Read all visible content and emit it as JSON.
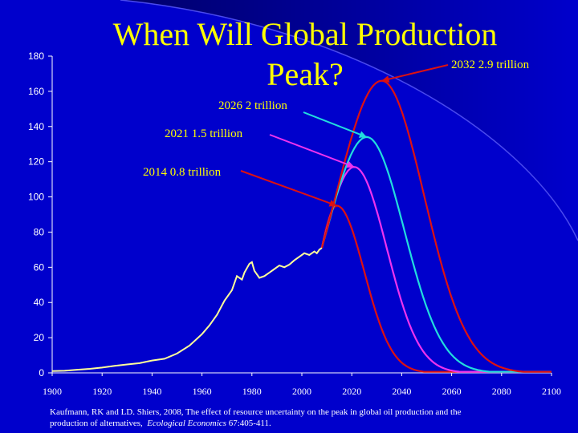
{
  "title_line1": "When Will Global Production",
  "title_line2": "Peak?",
  "citation_line1": "Kaufmann, RK  and  LD. Shiers, 2008, The effect of resource uncertainty on the peak in global oil production and the",
  "citation_line2_prefix": "production of alternatives,",
  "citation_journal": "Ecological Economics",
  "citation_pages": " 67:405-411.",
  "colors": {
    "background_dark": "#00006a",
    "background_light": "#0000cc",
    "title": "#ffff00",
    "text": "#ffffff",
    "historical": "#ffff99",
    "scenario_red": "#dd1111",
    "scenario_magenta": "#ee33ee",
    "scenario_cyan": "#22dddd"
  },
  "chart_data": {
    "type": "line",
    "title": "When Will Global Production Peak?",
    "xlabel": "",
    "ylabel": "",
    "xlim": [
      1900,
      2100
    ],
    "ylim": [
      0,
      180
    ],
    "x_ticks": [
      1900,
      1920,
      1940,
      1960,
      1980,
      2000,
      2020,
      2040,
      2060,
      2080,
      2100
    ],
    "y_ticks": [
      0,
      20,
      40,
      60,
      80,
      100,
      120,
      140,
      160,
      180
    ],
    "series": [
      {
        "name": "historical",
        "color": "#ffff99",
        "x": [
          1900,
          1905,
          1910,
          1915,
          1920,
          1925,
          1930,
          1935,
          1940,
          1945,
          1950,
          1955,
          1960,
          1963,
          1966,
          1969,
          1972,
          1974,
          1976,
          1977,
          1979,
          1980,
          1981,
          1983,
          1985,
          1987,
          1989,
          1991,
          1993,
          1995,
          1997,
          1999,
          2001,
          2003,
          2005,
          2006,
          2007,
          2008
        ],
        "values": [
          1,
          1.2,
          1.8,
          2.3,
          3,
          4,
          4.8,
          5.5,
          7,
          8,
          11,
          15.5,
          22,
          27,
          33,
          41,
          47,
          55,
          53,
          57,
          62,
          63,
          58,
          54,
          55,
          57,
          59,
          61,
          60,
          61.5,
          64,
          66,
          68,
          67,
          69,
          68,
          70,
          71
        ]
      },
      {
        "name": "2014 0.8 trillion",
        "color": "#dd1111",
        "peak_year": 2014,
        "peak_value": 95
      },
      {
        "name": "2021 1.5 trillion",
        "color": "#ee33ee",
        "peak_year": 2021,
        "peak_value": 117
      },
      {
        "name": "2026 2 trillion",
        "color": "#22dddd",
        "peak_year": 2026,
        "peak_value": 134
      },
      {
        "name": "2032 2.9 trillion",
        "color": "#dd1111",
        "peak_year": 2032,
        "peak_value": 166
      }
    ],
    "annotations": [
      {
        "text": "2032 2.9 trillion",
        "target_year": 2032,
        "target_value": 166
      },
      {
        "text": "2026 2 trillion",
        "target_year": 2026,
        "target_value": 134
      },
      {
        "text": "2021 1.5 trillion",
        "target_year": 2021,
        "target_value": 117
      },
      {
        "text": "2014 0.8 trillion",
        "target_year": 2014,
        "target_value": 95
      }
    ]
  }
}
